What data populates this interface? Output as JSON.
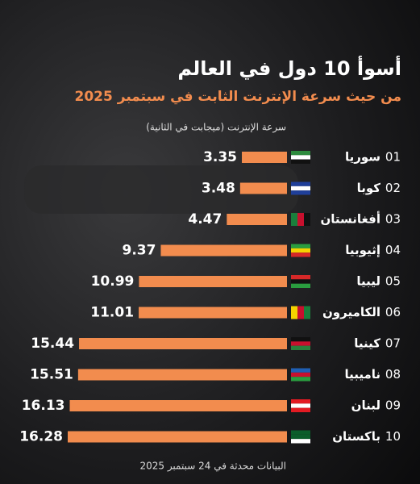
{
  "chart_data": {
    "type": "bar",
    "orientation": "horizontal",
    "title": "أسوأ 10 دول في العالم",
    "subtitle": "من حيث سرعة الإنترنت الثابت في سبتمبر 2025",
    "axis_label": "سرعة الإنترنت (ميجابت في الثانية)",
    "ranks": [
      "01",
      "02",
      "03",
      "04",
      "05",
      "06",
      "07",
      "08",
      "09",
      "10"
    ],
    "categories": [
      "سوريا",
      "كوبا",
      "أفغانستان",
      "إثيوبيا",
      "ليبيا",
      "الكاميرون",
      "كينيا",
      "ناميبيا",
      "لبنان",
      "باكستان"
    ],
    "values": [
      3.35,
      3.48,
      4.47,
      9.37,
      10.99,
      11.01,
      15.44,
      15.51,
      16.13,
      16.28
    ],
    "color": "#f28c4e",
    "footnote": "البيانات محدثة في 24 سبتمبر 2025"
  }
}
